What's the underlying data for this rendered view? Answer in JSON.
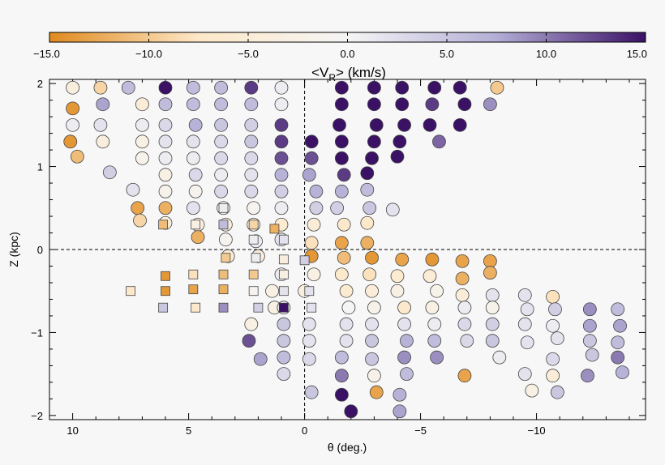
{
  "chart_data": {
    "type": "scatter",
    "xlabel": "θ (deg.)",
    "ylabel": "Z (kpc)",
    "xlim": [
      11,
      -14.7
    ],
    "ylim": [
      -2.05,
      2.05
    ],
    "xticks": [
      10,
      5,
      0,
      -5,
      -10
    ],
    "xtick_labels": [
      "10",
      "5",
      "0",
      "−5",
      "−10"
    ],
    "yticks": [
      2,
      1,
      0,
      -1,
      -2
    ],
    "ytick_labels": [
      "2",
      "1",
      "0",
      "−1",
      "−2"
    ],
    "reference_lines": {
      "x": 0,
      "y": 0
    },
    "colorbar": {
      "title": "<V",
      "title_sub": "R",
      "title_rest": "> (km/s)",
      "range": [
        -15,
        15
      ],
      "ticks": [
        -15,
        -10,
        -5,
        0,
        5,
        10,
        15
      ],
      "tick_labels": [
        "−15.0",
        "−10.0",
        "−5.0",
        "0.0",
        "5.0",
        "10.0",
        "15.0"
      ],
      "colors": [
        "#e08a1e",
        "#fde8c8",
        "#f5f5f5",
        "#b3aed6",
        "#3b1166"
      ]
    },
    "series": [
      {
        "marker": "circle",
        "points": [
          [
            10,
            1.95,
            -4
          ],
          [
            8.8,
            1.95,
            -9
          ],
          [
            7.6,
            1.95,
            6
          ],
          [
            6,
            1.95,
            15
          ],
          [
            4.8,
            1.95,
            6
          ],
          [
            3.6,
            1.95,
            6
          ],
          [
            2.3,
            1.95,
            13
          ],
          [
            1,
            1.95,
            1
          ],
          [
            -1.6,
            1.95,
            15
          ],
          [
            -3,
            1.95,
            15
          ],
          [
            -4.2,
            1.95,
            15
          ],
          [
            -5.6,
            1.95,
            15
          ],
          [
            -6.7,
            1.95,
            15
          ],
          [
            -8.3,
            1.95,
            -10
          ],
          [
            10,
            1.7,
            -14
          ],
          [
            8.7,
            1.75,
            8
          ],
          [
            7,
            1.75,
            -5
          ],
          [
            6,
            1.75,
            6
          ],
          [
            4.8,
            1.75,
            6
          ],
          [
            3.6,
            1.75,
            6
          ],
          [
            2.3,
            1.75,
            6
          ],
          [
            1,
            1.75,
            1
          ],
          [
            -1.6,
            1.75,
            15
          ],
          [
            -3,
            1.75,
            15
          ],
          [
            -4.2,
            1.75,
            15
          ],
          [
            -5.5,
            1.75,
            13
          ],
          [
            -6.9,
            1.75,
            15
          ],
          [
            -8,
            1.75,
            9
          ],
          [
            10,
            1.5,
            1
          ],
          [
            8.8,
            1.5,
            2
          ],
          [
            7,
            1.5,
            1
          ],
          [
            6,
            1.5,
            3
          ],
          [
            4.7,
            1.5,
            7
          ],
          [
            3.6,
            1.5,
            5
          ],
          [
            2.3,
            1.5,
            4
          ],
          [
            1,
            1.5,
            13
          ],
          [
            -1.5,
            1.5,
            15
          ],
          [
            -3.1,
            1.5,
            15
          ],
          [
            -4.3,
            1.5,
            15
          ],
          [
            -5.4,
            1.5,
            15
          ],
          [
            -6.7,
            1.5,
            15
          ],
          [
            10.1,
            1.3,
            -14
          ],
          [
            8.7,
            1.3,
            -4
          ],
          [
            7,
            1.3,
            -3
          ],
          [
            6,
            1.3,
            2
          ],
          [
            4.8,
            1.3,
            2
          ],
          [
            3.6,
            1.3,
            3
          ],
          [
            2.3,
            1.3,
            5
          ],
          [
            1,
            1.3,
            13
          ],
          [
            -0.3,
            1.3,
            15
          ],
          [
            -1.6,
            1.3,
            15
          ],
          [
            -3,
            1.3,
            15
          ],
          [
            -4.1,
            1.3,
            15
          ],
          [
            -5.8,
            1.3,
            11
          ],
          [
            9.8,
            1.12,
            -11
          ],
          [
            7,
            1.1,
            -2
          ],
          [
            6,
            1.1,
            1
          ],
          [
            4.8,
            1.1,
            1
          ],
          [
            3.6,
            1.1,
            3
          ],
          [
            2.3,
            1.1,
            3
          ],
          [
            1,
            1.1,
            12
          ],
          [
            -0.3,
            1.1,
            12
          ],
          [
            -1.6,
            1.1,
            15
          ],
          [
            -2.9,
            1.1,
            15
          ],
          [
            -4,
            1.12,
            15
          ],
          [
            8.4,
            0.93,
            4
          ],
          [
            6,
            0.9,
            -3
          ],
          [
            4.7,
            0.9,
            3
          ],
          [
            3.6,
            0.9,
            1
          ],
          [
            2.3,
            0.9,
            2
          ],
          [
            1,
            0.9,
            7
          ],
          [
            -0.2,
            0.9,
            8
          ],
          [
            -1.7,
            0.9,
            13
          ],
          [
            -2.7,
            0.92,
            15
          ],
          [
            7.4,
            0.72,
            2
          ],
          [
            6,
            0.7,
            -2
          ],
          [
            4.7,
            0.7,
            -1
          ],
          [
            3.6,
            0.7,
            3
          ],
          [
            2.3,
            0.7,
            3
          ],
          [
            1,
            0.7,
            4
          ],
          [
            -0.5,
            0.7,
            7
          ],
          [
            -1.6,
            0.7,
            7
          ],
          [
            -2.7,
            0.72,
            6
          ],
          [
            7.2,
            0.5,
            -13
          ],
          [
            6,
            0.5,
            -12
          ],
          [
            4.8,
            0.5,
            2
          ],
          [
            3.5,
            0.5,
            -3
          ],
          [
            2.2,
            0.5,
            -1
          ],
          [
            1,
            0.5,
            1
          ],
          [
            -0.5,
            0.5,
            4
          ],
          [
            -1.4,
            0.5,
            4
          ],
          [
            -2.8,
            0.5,
            5
          ],
          [
            -3.8,
            0.48,
            2
          ],
          [
            7.1,
            0.35,
            -9
          ],
          [
            6,
            0.32,
            -4
          ],
          [
            4.6,
            0.3,
            -4
          ],
          [
            3.4,
            0.3,
            -4
          ],
          [
            2.2,
            0.3,
            -3
          ],
          [
            1,
            0.3,
            -6
          ],
          [
            -0.4,
            0.3,
            -5
          ],
          [
            -1.7,
            0.3,
            -7
          ],
          [
            -2.7,
            0.32,
            -7
          ],
          [
            4.6,
            0.15,
            -12
          ],
          [
            3.4,
            0.12,
            -1
          ],
          [
            2.1,
            0.1,
            1
          ],
          [
            1,
            0.12,
            2
          ],
          [
            -0.3,
            0.08,
            -8
          ],
          [
            -1.6,
            0.08,
            -13
          ],
          [
            -2.7,
            0.08,
            -12
          ],
          [
            3.3,
            -0.08,
            -6
          ],
          [
            2,
            -0.08,
            -4
          ],
          [
            -0.3,
            -0.08,
            -14
          ],
          [
            -1.7,
            -0.1,
            -11
          ],
          [
            -2.9,
            -0.1,
            -14
          ],
          [
            -4.2,
            -0.12,
            -13
          ],
          [
            -5.5,
            -0.12,
            -14
          ],
          [
            -6.8,
            -0.14,
            -13
          ],
          [
            -8,
            -0.14,
            -13
          ],
          [
            1,
            -0.3,
            1
          ],
          [
            -0.4,
            -0.3,
            -3
          ],
          [
            -1.6,
            -0.3,
            -7
          ],
          [
            -2.8,
            -0.3,
            -8
          ],
          [
            -4,
            -0.32,
            -6
          ],
          [
            -5.4,
            -0.32,
            -5
          ],
          [
            -6.8,
            -0.35,
            -12
          ],
          [
            -8,
            -0.28,
            -12
          ],
          [
            1.4,
            -0.5,
            -3
          ],
          [
            0,
            -0.5,
            -4
          ],
          [
            -1.8,
            -0.5,
            -6
          ],
          [
            -2.9,
            -0.5,
            -5
          ],
          [
            -4,
            -0.5,
            -3
          ],
          [
            -5.7,
            -0.5,
            -2
          ],
          [
            -6.8,
            -0.55,
            -5
          ],
          [
            -8.1,
            -0.55,
            2
          ],
          [
            -9.5,
            -0.55,
            2
          ],
          [
            -10.7,
            -0.57,
            -8
          ],
          [
            1.3,
            -0.7,
            -3
          ],
          [
            0.9,
            -0.7,
            1
          ],
          [
            -1.9,
            -0.7,
            0
          ],
          [
            -3,
            -0.7,
            -2
          ],
          [
            -4.3,
            -0.7,
            -7
          ],
          [
            -5.5,
            -0.7,
            -3
          ],
          [
            -6.9,
            -0.7,
            1
          ],
          [
            -8.1,
            -0.7,
            -2
          ],
          [
            -9.6,
            -0.72,
            2
          ],
          [
            -10.8,
            -0.72,
            4
          ],
          [
            -12.3,
            -0.72,
            9
          ],
          [
            -13.5,
            -0.72,
            6
          ],
          [
            2.3,
            -0.9,
            -3
          ],
          [
            0.9,
            -0.9,
            5
          ],
          [
            -0.2,
            -0.9,
            2
          ],
          [
            -1.8,
            -0.9,
            2
          ],
          [
            -2.9,
            -0.9,
            2
          ],
          [
            -4.3,
            -0.9,
            2
          ],
          [
            -5.6,
            -0.9,
            1
          ],
          [
            -6.9,
            -0.9,
            3
          ],
          [
            -8.1,
            -0.9,
            4
          ],
          [
            -9.5,
            -0.9,
            2
          ],
          [
            -10.7,
            -0.92,
            1
          ],
          [
            -12.3,
            -0.92,
            8
          ],
          [
            -13.6,
            -0.92,
            8
          ],
          [
            2.4,
            -1.1,
            12
          ],
          [
            0.9,
            -1.1,
            5
          ],
          [
            -0.2,
            -1.1,
            2
          ],
          [
            -1.8,
            -1.1,
            2
          ],
          [
            -2.9,
            -1.1,
            5
          ],
          [
            -4.4,
            -1.1,
            7
          ],
          [
            -5.6,
            -1.1,
            6
          ],
          [
            -7,
            -1.1,
            3
          ],
          [
            -8.1,
            -1.1,
            5
          ],
          [
            -9.6,
            -1.12,
            2
          ],
          [
            -10.9,
            -1.07,
            2
          ],
          [
            -12.3,
            -1.1,
            5
          ],
          [
            -13.5,
            -1.12,
            6
          ],
          [
            1.9,
            -1.32,
            8
          ],
          [
            0.9,
            -1.3,
            6
          ],
          [
            -0.2,
            -1.32,
            3
          ],
          [
            -1.6,
            -1.3,
            6
          ],
          [
            -2.9,
            -1.32,
            5
          ],
          [
            -4.3,
            -1.3,
            9
          ],
          [
            -5.7,
            -1.3,
            9
          ],
          [
            -8.4,
            -1.3,
            1
          ],
          [
            -10.7,
            -1.32,
            3
          ],
          [
            -12.4,
            -1.27,
            5
          ],
          [
            -13.5,
            -1.3,
            10
          ],
          [
            0.9,
            -1.5,
            3
          ],
          [
            -1.6,
            -1.52,
            10
          ],
          [
            -3,
            -1.52,
            -2
          ],
          [
            -4.4,
            -1.5,
            6
          ],
          [
            -6.9,
            -1.52,
            -13
          ],
          [
            -9.5,
            -1.5,
            2
          ],
          [
            -10.7,
            -1.52,
            -5
          ],
          [
            -12.2,
            -1.52,
            9
          ],
          [
            -13.7,
            -1.48,
            7
          ],
          [
            -0.3,
            -1.72,
            5
          ],
          [
            -1.6,
            -1.75,
            15
          ],
          [
            -3.1,
            -1.72,
            -13
          ],
          [
            -4.1,
            -1.75,
            7
          ],
          [
            -9.8,
            -1.7,
            -3
          ],
          [
            -10.9,
            -1.72,
            5
          ],
          [
            -2,
            -1.95,
            15
          ],
          [
            -4.1,
            -1.95,
            8
          ]
        ]
      },
      {
        "marker": "square",
        "points": [
          [
            6.1,
            0.3,
            -11
          ],
          [
            4.7,
            0.3,
            -3
          ],
          [
            3.5,
            0.5,
            1
          ],
          [
            3.5,
            0.3,
            6
          ],
          [
            2.2,
            0.3,
            -9
          ],
          [
            1.3,
            0.25,
            -12
          ],
          [
            0.9,
            0.12,
            2
          ],
          [
            2.2,
            0.12,
            1
          ],
          [
            3.4,
            -0.1,
            -10
          ],
          [
            2.1,
            -0.1,
            1
          ],
          [
            0.9,
            -0.12,
            -4
          ],
          [
            0,
            -0.13,
            4
          ],
          [
            6,
            -0.32,
            -14
          ],
          [
            4.8,
            -0.3,
            -8
          ],
          [
            3.5,
            -0.3,
            -11
          ],
          [
            2.2,
            -0.3,
            -10
          ],
          [
            0.9,
            -0.3,
            -3
          ],
          [
            7.5,
            -0.5,
            -7
          ],
          [
            6,
            -0.5,
            -14
          ],
          [
            4.8,
            -0.48,
            -13
          ],
          [
            3.5,
            -0.48,
            -12
          ],
          [
            2.2,
            -0.5,
            -1
          ],
          [
            0.9,
            -0.5,
            2
          ],
          [
            -0.2,
            -0.5,
            2
          ],
          [
            6.1,
            -0.7,
            5
          ],
          [
            4.7,
            -0.7,
            -7
          ],
          [
            3.5,
            -0.7,
            9
          ],
          [
            2,
            -0.7,
            4
          ],
          [
            0.9,
            -0.7,
            15
          ],
          [
            -0.3,
            -0.7,
            2
          ]
        ]
      }
    ]
  }
}
